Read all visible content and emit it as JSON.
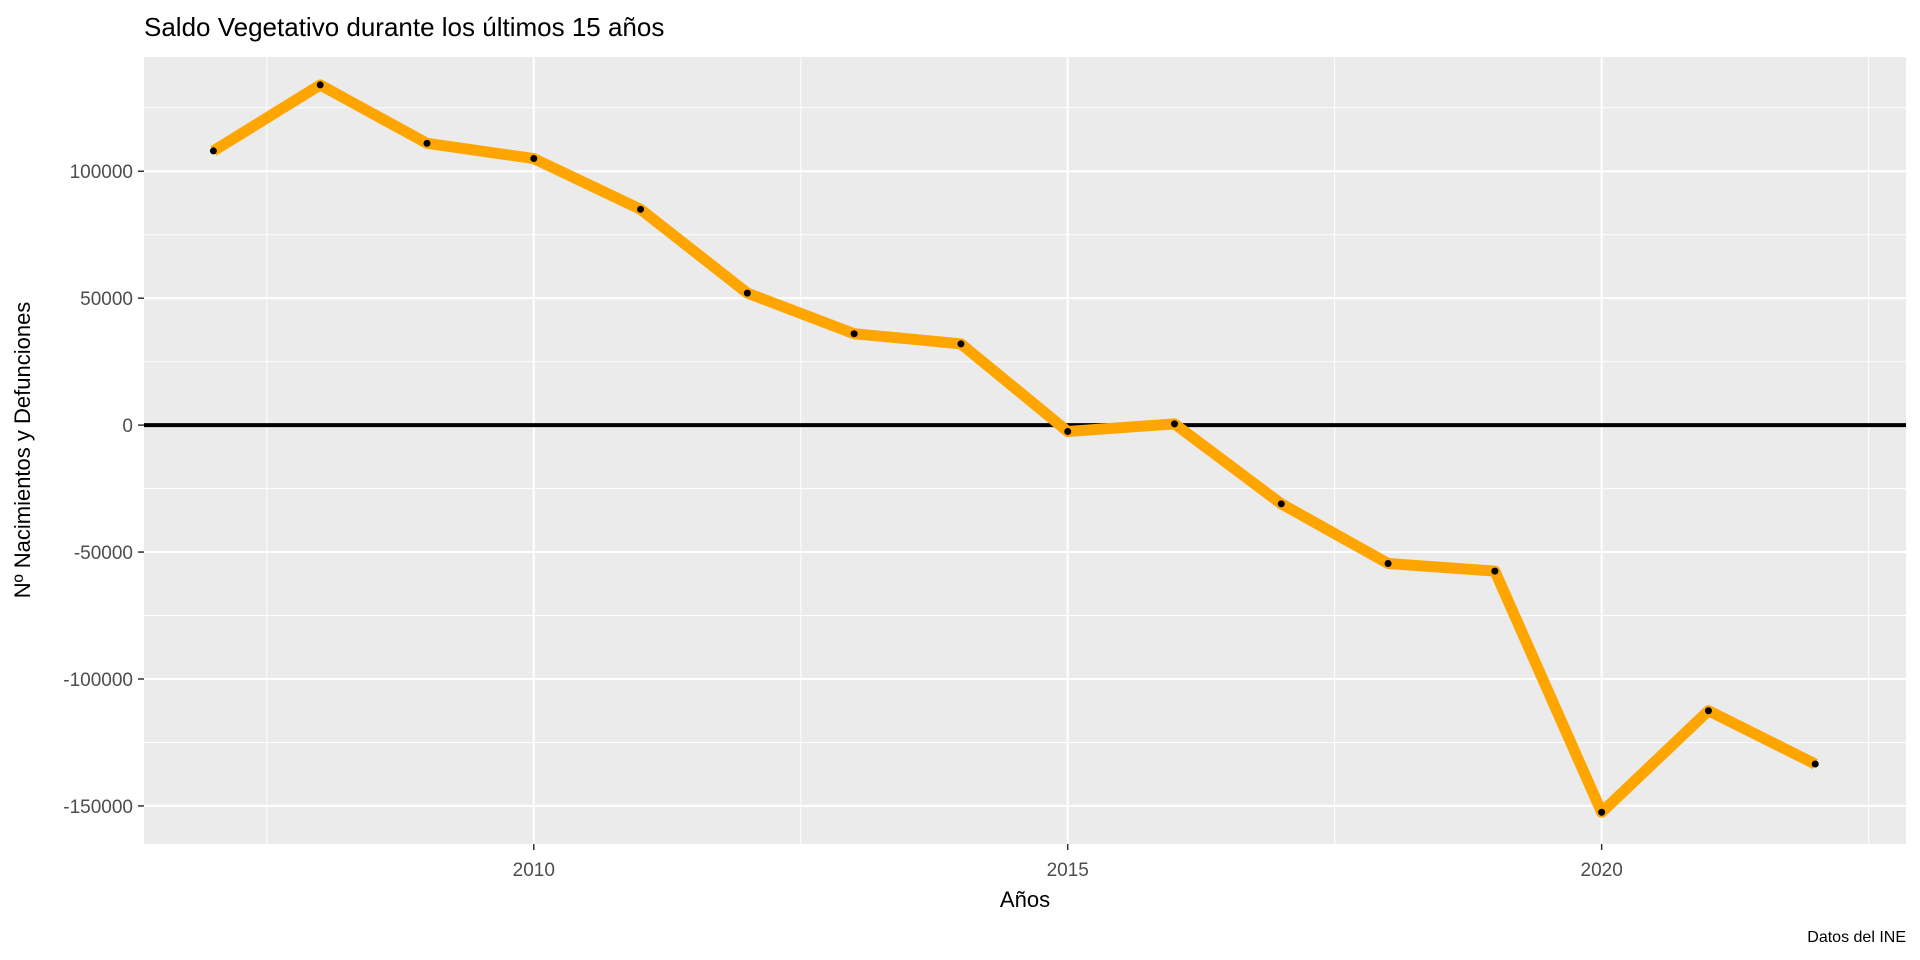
{
  "chart_data": {
    "type": "line",
    "title": "Saldo Vegetativo durante los últimos 15 años",
    "xlabel": "Años",
    "ylabel": "Nº Nacimientos y Defunciones",
    "caption": "Datos del INE",
    "x": [
      2007,
      2008,
      2009,
      2010,
      2011,
      2012,
      2013,
      2014,
      2015,
      2016,
      2017,
      2018,
      2019,
      2020,
      2021,
      2022
    ],
    "series": [
      {
        "values": [
          108000,
          134000,
          111000,
          105000,
          85000,
          52000,
          36000,
          32000,
          -2500,
          500,
          -31000,
          -54500,
          -57500,
          -152500,
          -112500,
          -133500
        ],
        "color": "#FFA500",
        "marker_color": "#000000"
      }
    ],
    "xlim": [
      2006.35,
      2022.85
    ],
    "ylim": [
      -165000,
      145000
    ],
    "xticks": [
      2010,
      2015,
      2020
    ],
    "xtick_labels": [
      "2010",
      "2015",
      "2020"
    ],
    "yticks": [
      100000,
      50000,
      0,
      -50000,
      -100000,
      -150000
    ],
    "ytick_labels": [
      "100000",
      "50000",
      "0",
      "-50000",
      "-100000",
      "-150000"
    ],
    "reference_line": {
      "y": 0,
      "color": "#000000"
    },
    "grid": true,
    "panel_background": "#EBEBEB",
    "grid_color": "#FFFFFF",
    "legend": "none"
  }
}
